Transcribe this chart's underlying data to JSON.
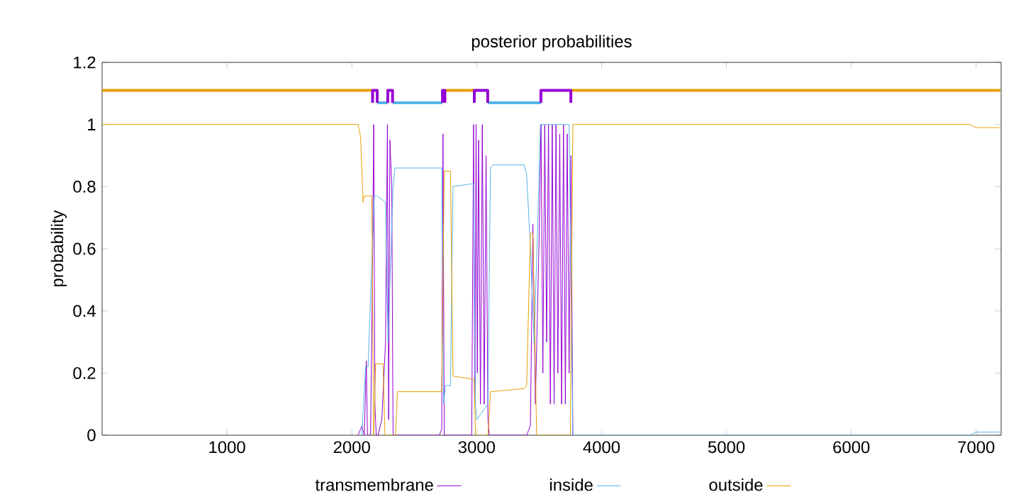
{
  "chart_data": {
    "type": "line",
    "title": "posterior probabilities",
    "ylabel": "probability",
    "xlim": [
      0,
      7200
    ],
    "xticks": [
      1000,
      2000,
      3000,
      4000,
      5000,
      6000,
      7000
    ],
    "ylim": [
      0,
      1.2
    ],
    "yticks": [
      0,
      0.2,
      0.4,
      0.6,
      0.8,
      1,
      1.2
    ],
    "grid": false,
    "legend": "bottom",
    "marker": "none",
    "line_style": "solid",
    "series": [
      {
        "color": "#e69f00",
        "x": [
          1,
          2166
        ],
        "values": [
          1.11,
          1.11
        ]
      },
      {
        "color": "#e69f00",
        "x": [
          2745,
          2981
        ],
        "values": [
          1.11,
          1.11
        ]
      },
      {
        "color": "#e69f00",
        "x": [
          3754,
          7194
        ],
        "values": [
          1.11,
          1.11
        ]
      },
      {
        "color": "#56b4e9",
        "x": [
          2203,
          2288
        ],
        "values": [
          1.07,
          1.07
        ]
      },
      {
        "color": "#56b4e9",
        "x": [
          2326,
          2726
        ],
        "values": [
          1.07,
          1.07
        ]
      },
      {
        "color": "#56b4e9",
        "x": [
          3088,
          3514
        ],
        "values": [
          1.07,
          1.07
        ]
      },
      {
        "color": "#9400d3",
        "x": [
          2166,
          2166,
          2203,
          2203
        ],
        "values": [
          1.07,
          1.11,
          1.11,
          1.07
        ]
      },
      {
        "color": "#9400d3",
        "x": [
          2288,
          2288,
          2326,
          2326
        ],
        "values": [
          1.07,
          1.11,
          1.11,
          1.07
        ]
      },
      {
        "color": "#9400d3",
        "x": [
          2726,
          2726,
          2745,
          2745
        ],
        "values": [
          1.07,
          1.11,
          1.11,
          1.07
        ]
      },
      {
        "color": "#9400d3",
        "x": [
          2981,
          2981,
          3088,
          3088
        ],
        "values": [
          1.07,
          1.11,
          1.11,
          1.07
        ]
      },
      {
        "color": "#9400d3",
        "x": [
          3514,
          3514,
          3754,
          3754
        ],
        "values": [
          1.07,
          1.11,
          1.11,
          1.07
        ]
      },
      {
        "name": "transmembrane",
        "color": "#9400d3",
        "x": [
          2050,
          2080,
          2100,
          2116,
          2125,
          2150,
          2165,
          2175,
          2185,
          2195,
          2210,
          2240,
          2270,
          2285,
          2295,
          2305,
          2320,
          2330,
          2340,
          2700,
          2720,
          2730,
          2740,
          2760,
          2960,
          2975,
          2985,
          2995,
          3005,
          3015,
          3030,
          3045,
          3060,
          3075,
          3090,
          3100,
          3400,
          3430,
          3450,
          3470,
          3500,
          3515,
          3530,
          3545,
          3560,
          3575,
          3590,
          3605,
          3620,
          3635,
          3650,
          3665,
          3680,
          3695,
          3710,
          3725,
          3740,
          3755,
          3770
        ],
        "values": [
          0,
          0.03,
          0,
          0.24,
          0,
          0,
          0.5,
          1,
          0.1,
          0,
          0,
          0.05,
          0.3,
          1,
          0.05,
          0.95,
          0.8,
          0,
          0,
          0,
          0.02,
          0.97,
          0,
          0,
          0,
          1,
          0.1,
          1,
          0.2,
          0.95,
          0.1,
          1,
          0.1,
          0.9,
          0.05,
          0,
          0,
          0.03,
          0.68,
          0.1,
          0.64,
          1,
          0.2,
          1,
          0.3,
          1,
          0.1,
          1,
          0.1,
          1,
          0.2,
          0.97,
          0.1,
          1,
          0.1,
          0.97,
          0.2,
          0.9,
          0
        ]
      },
      {
        "name": "inside",
        "color": "#56b4e9",
        "x": [
          2080,
          2110,
          2130,
          2180,
          2200,
          2270,
          2290,
          2330,
          2345,
          2720,
          2735,
          2750,
          2790,
          2810,
          2975,
          2990,
          3000,
          3090,
          3110,
          3130,
          3380,
          3400,
          3430,
          3460,
          3490,
          3510,
          3520,
          3740,
          3755,
          3770,
          6950,
          7000,
          7194
        ],
        "values": [
          0,
          0.22,
          0.22,
          0.77,
          0.77,
          0.75,
          0.3,
          0.8,
          0.86,
          0.86,
          0.1,
          0.16,
          0.16,
          0.8,
          0.81,
          0.1,
          0.05,
          0.1,
          0.86,
          0.87,
          0.87,
          0.84,
          0.6,
          0.3,
          0.7,
          1,
          1,
          1,
          0.5,
          0,
          0,
          0.01,
          0.01
        ]
      },
      {
        "name": "outside",
        "color": "#e69f00",
        "x": [
          1,
          2050,
          2070,
          2090,
          2100,
          2160,
          2175,
          2190,
          2250,
          2265,
          2350,
          2365,
          2720,
          2740,
          2790,
          2810,
          2980,
          2990,
          3090,
          3110,
          3380,
          3400,
          3430,
          3450,
          3480,
          3500,
          3750,
          3770,
          6950,
          7000,
          7194
        ],
        "values": [
          1,
          1,
          0.96,
          0.75,
          0.77,
          0.77,
          0,
          0.23,
          0.23,
          0,
          0,
          0.14,
          0.14,
          0.85,
          0.85,
          0.19,
          0.18,
          0,
          0,
          0.14,
          0.15,
          0.16,
          0.65,
          0.65,
          0,
          0,
          0,
          1,
          1,
          0.99,
          0.99
        ]
      }
    ]
  }
}
